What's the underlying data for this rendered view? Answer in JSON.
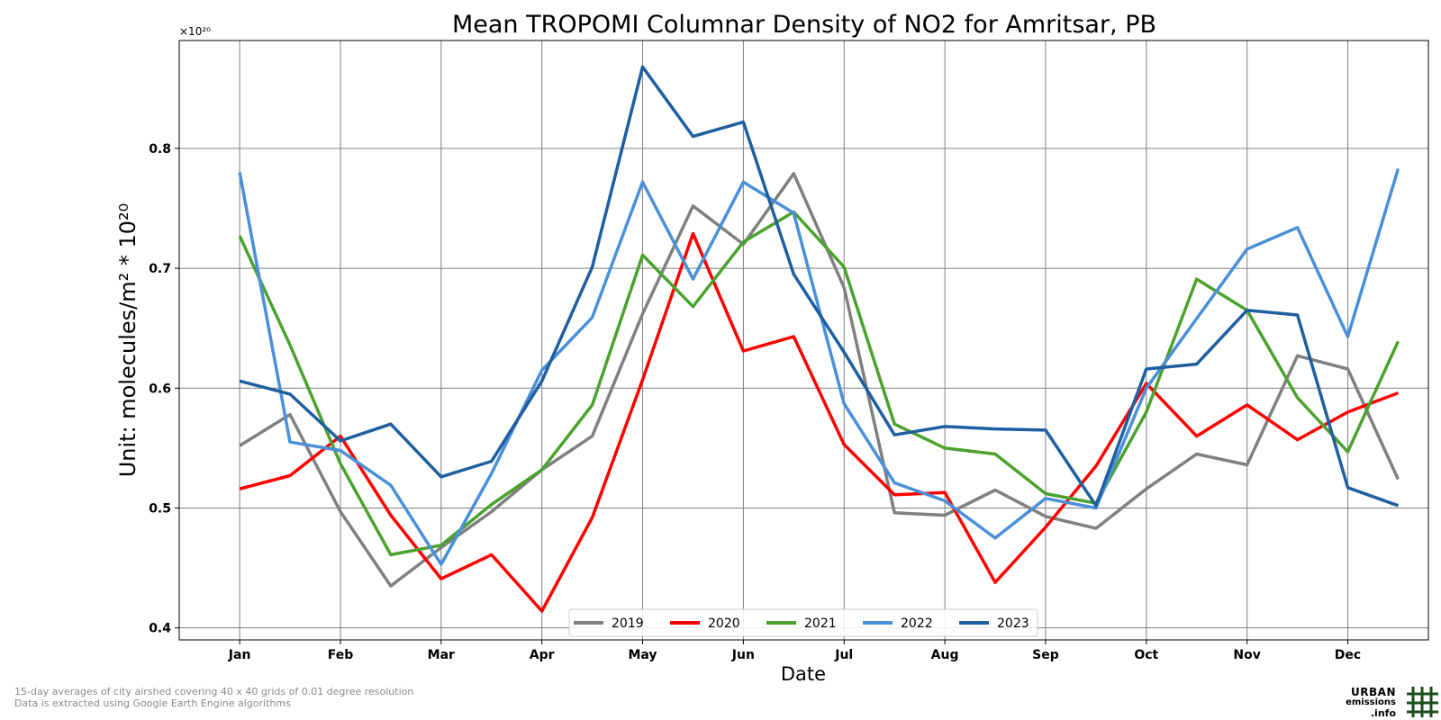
{
  "chart_data": {
    "type": "line",
    "title": "Mean TROPOMI Columnar Density of NO2 for Amritsar, PB",
    "xlabel": "Date",
    "ylabel": "Unit: molecules/m² * 10²⁰",
    "scale_label": "×10²⁰",
    "ylim": [
      0.39,
      0.89
    ],
    "yticks": [
      0.4,
      0.5,
      0.6,
      0.7,
      0.8
    ],
    "ytick_labels": [
      "0.4",
      "0.5",
      "0.6",
      "0.7",
      "0.8"
    ],
    "xlim": [
      0.4,
      12.8
    ],
    "xticks": [
      1,
      2,
      3,
      4,
      5,
      6,
      7,
      8,
      9,
      10,
      11,
      12
    ],
    "xtick_labels": [
      "Jan",
      "Feb",
      "Mar",
      "Apr",
      "May",
      "Jun",
      "Jul",
      "Aug",
      "Sep",
      "Oct",
      "Nov",
      "Dec"
    ],
    "x": [
      1,
      1.5,
      2,
      2.5,
      3,
      3.5,
      4,
      4.5,
      5,
      5.5,
      6,
      6.5,
      7,
      7.5,
      8,
      8.5,
      9,
      9.5,
      10,
      10.5,
      11,
      11.5,
      12,
      12.5
    ],
    "grid": true,
    "legend_position": "bottom-center",
    "series": [
      {
        "name": "2019",
        "color": "#808080",
        "values": [
          0.552,
          0.578,
          0.497,
          0.435,
          0.467,
          0.497,
          0.532,
          0.56,
          0.662,
          0.752,
          0.72,
          0.779,
          0.684,
          0.496,
          0.494,
          0.515,
          0.493,
          0.483,
          0.516,
          0.545,
          0.536,
          0.627,
          0.616,
          0.524
        ]
      },
      {
        "name": "2020",
        "color": "#ff0000",
        "values": [
          0.516,
          0.527,
          0.56,
          0.494,
          0.441,
          0.461,
          0.414,
          0.492,
          0.607,
          0.729,
          0.631,
          0.643,
          0.553,
          0.511,
          0.513,
          0.438,
          0.484,
          0.535,
          0.604,
          0.56,
          0.586,
          0.557,
          0.58,
          0.596
        ]
      },
      {
        "name": "2021",
        "color": "#4ca22f",
        "values": [
          0.727,
          0.636,
          0.537,
          0.461,
          0.469,
          0.503,
          0.532,
          0.586,
          0.711,
          0.668,
          0.722,
          0.747,
          0.701,
          0.57,
          0.55,
          0.545,
          0.512,
          0.504,
          0.58,
          0.691,
          0.665,
          0.592,
          0.547,
          0.639
        ]
      },
      {
        "name": "2022",
        "color": "#4a90d9",
        "values": [
          0.78,
          0.555,
          0.548,
          0.519,
          0.453,
          0.529,
          0.615,
          0.659,
          0.772,
          0.691,
          0.772,
          0.746,
          0.587,
          0.521,
          0.506,
          0.475,
          0.508,
          0.5,
          0.6,
          0.658,
          0.716,
          0.734,
          0.643,
          0.783
        ]
      },
      {
        "name": "2023",
        "color": "#1f5fa0",
        "values": [
          0.606,
          0.595,
          0.556,
          0.57,
          0.526,
          0.539,
          0.606,
          0.701,
          0.868,
          0.81,
          0.822,
          0.695,
          0.63,
          0.561,
          0.568,
          0.566,
          0.565,
          0.502,
          0.616,
          0.62,
          0.665,
          0.661,
          0.517,
          0.502
        ]
      }
    ]
  },
  "footnotes": [
    "15-day averages of city airshed covering 40 x 40 grids of 0.01 degree resolution",
    "Data is extracted using Google Earth Engine algorithms"
  ],
  "logo": {
    "line1": "URBAN",
    "line2": "emissions",
    "line3": ".info",
    "color": "#1a4d1a"
  }
}
